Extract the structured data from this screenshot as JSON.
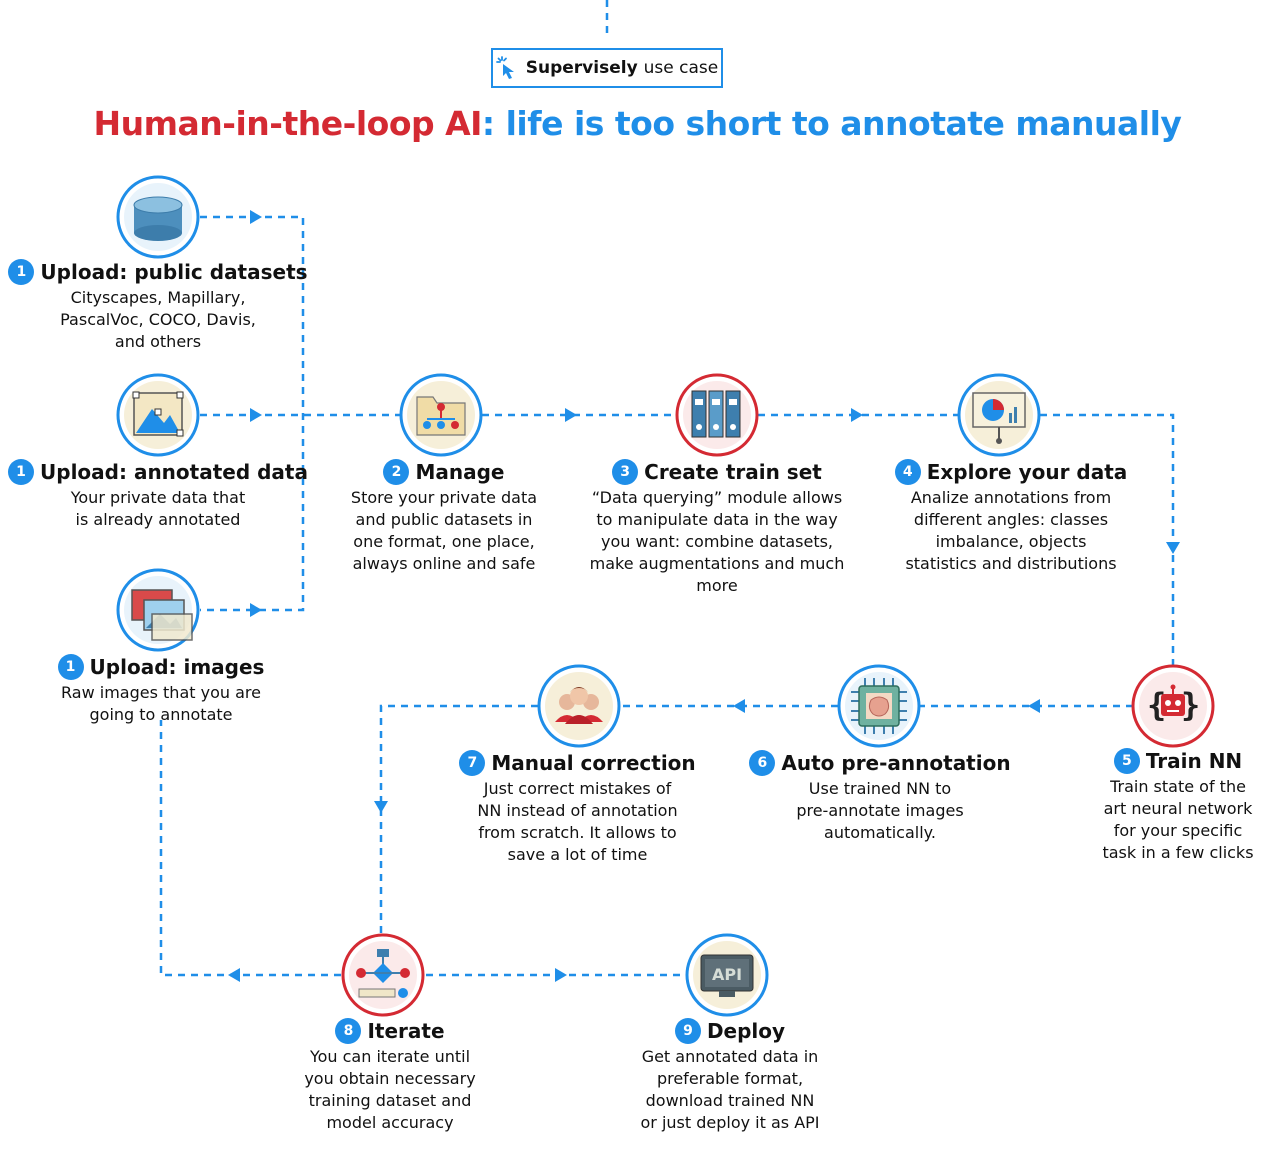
{
  "badge": {
    "brand": "Supervisely",
    "text": "use case",
    "icon": "pointer-click-icon"
  },
  "title": {
    "part1": "Human-in-the-loop AI",
    "part2": ": life is too short to annotate manually"
  },
  "colors": {
    "blue": "#1f8ee8",
    "red": "#d42a33"
  },
  "steps": {
    "upload_public": {
      "num": "1",
      "title": "Upload: public datasets",
      "desc": "Cityscapes, Mapillary,\nPascalVoc, COCO, Davis,\nand others",
      "icon": "database-icon"
    },
    "upload_annotated": {
      "num": "1",
      "title": "Upload: annotated data",
      "desc": "Your private data that\nis already annotated",
      "icon": "annotated-image-icon"
    },
    "upload_images": {
      "num": "1",
      "title": "Upload: images",
      "desc": "Raw images that you are\ngoing to annotate",
      "icon": "images-icon"
    },
    "manage": {
      "num": "2",
      "title": "Manage",
      "desc": "Store your private data\nand public datasets in\none format, one place,\nalways online and safe",
      "icon": "folder-hierarchy-icon"
    },
    "create": {
      "num": "3",
      "title": "Create train set",
      "desc": "“Data querying” module allows\nto manipulate data in the way\nyou want: combine datasets,\nmake augmentations and much\nmore",
      "icon": "binders-icon"
    },
    "explore": {
      "num": "4",
      "title": "Explore your data",
      "desc": "Analize annotations from\ndifferent angles: classes\nimbalance, objects\nstatistics and distributions",
      "icon": "presentation-chart-icon"
    },
    "train": {
      "num": "5",
      "title": "Train NN",
      "desc": "Train state of the\nart neural network\nfor your specific\ntask in a few clicks",
      "icon": "robot-icon"
    },
    "auto": {
      "num": "6",
      "title": "Auto pre-annotation",
      "desc": "Use trained NN to\npre-annotate images\nautomatically.",
      "icon": "chip-brain-icon"
    },
    "manual": {
      "num": "7",
      "title": "Manual correction",
      "desc": "Just correct mistakes of\nNN instead of annotation\nfrom scratch. It allows to\nsave a lot of time",
      "icon": "people-icon"
    },
    "iterate": {
      "num": "8",
      "title": "Iterate",
      "desc": "You can iterate until\nyou obtain necessary\ntraining dataset and\nmodel accuracy",
      "icon": "flowchart-icon"
    },
    "deploy": {
      "num": "9",
      "title": "Deploy",
      "desc": "Get annotated data in\npreferable format,\ndownload trained NN\nor just deploy it as API",
      "icon": "api-icon"
    }
  },
  "api_label": "API"
}
